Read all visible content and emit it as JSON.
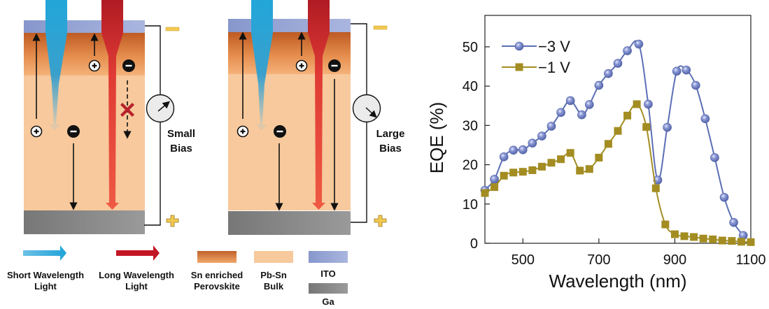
{
  "colors": {
    "ito": "#99a8d6",
    "sn_enriched_top": "#c0622a",
    "sn_enriched_bottom": "#f2a76a",
    "bulk": "#f7c99c",
    "ga": "#8a8a8a",
    "short_light": "#2aa6d8",
    "long_light_top": "#b51c26",
    "long_light_bottom": "#ee5440",
    "electrode_sign": "#f2c950",
    "blocked_x": "#b8222a",
    "series_3v": "#5b6fb5",
    "series_1v": "#a38d22"
  },
  "panels": [
    {
      "id": "small",
      "meter_dir": "up-right",
      "bias_line1": "Small",
      "bias_line2": "Bias",
      "long_electron_blocked": true
    },
    {
      "id": "large",
      "meter_dir": "down-right",
      "bias_line1": "Large",
      "bias_line2": "Bias",
      "long_electron_blocked": false
    }
  ],
  "electrodes": {
    "top_sign": "−",
    "bottom_sign": "+"
  },
  "legend": [
    {
      "key": "short-wavelength-light",
      "line1": "Short Wavelength",
      "line2": "Light"
    },
    {
      "key": "long-wavelength-light",
      "line1": "Long Wavelength",
      "line2": "Light"
    },
    {
      "key": "sn-enriched-perovskite",
      "line1": "Sn enriched",
      "line2": "Perovskite"
    },
    {
      "key": "pb-sn-bulk",
      "line1": "Pb-Sn",
      "line2": "Bulk"
    },
    {
      "key": "ito",
      "line1": "ITO",
      "line2": ""
    },
    {
      "key": "ga",
      "line1": "Ga",
      "line2": ""
    }
  ],
  "chart_data": {
    "type": "line",
    "title": "",
    "xlabel": "Wavelength (nm)",
    "ylabel": "EQE (%)",
    "xlim": [
      400,
      1100
    ],
    "ylim": [
      0,
      58
    ],
    "xticks": [
      500,
      700,
      900,
      1100
    ],
    "yticks": [
      0,
      10,
      20,
      30,
      40,
      50
    ],
    "grid": false,
    "legend_position": "top-left",
    "series": [
      {
        "name": "−3 V",
        "marker": "circle",
        "x": [
          400,
          425,
          450,
          475,
          500,
          525,
          550,
          575,
          600,
          625,
          655,
          675,
          700,
          725,
          750,
          775,
          805,
          830,
          855,
          880,
          905,
          930,
          955,
          980,
          1005,
          1030,
          1055,
          1080
        ],
        "y": [
          13.5,
          16.3,
          22.0,
          23.7,
          23.8,
          25.5,
          27.3,
          29.8,
          33.3,
          36.3,
          32.7,
          35.3,
          40.2,
          43.2,
          45.8,
          49.0,
          50.7,
          35.4,
          16.1,
          29.5,
          43.8,
          44.1,
          40.2,
          31.7,
          21.8,
          11.7,
          5.3,
          2.0
        ]
      },
      {
        "name": "−1 V",
        "marker": "square",
        "x": [
          400,
          425,
          450,
          475,
          500,
          525,
          550,
          575,
          600,
          625,
          650,
          675,
          700,
          725,
          750,
          775,
          800,
          825,
          850,
          875,
          900,
          925,
          950,
          975,
          1000,
          1025,
          1050,
          1075,
          1100
        ],
        "y": [
          12.8,
          14.3,
          17.2,
          18.0,
          18.2,
          18.6,
          19.5,
          20.5,
          21.4,
          23.0,
          18.5,
          18.9,
          21.8,
          25.3,
          28.6,
          32.5,
          35.4,
          29.6,
          14.0,
          4.8,
          2.3,
          1.8,
          1.6,
          1.2,
          1.0,
          0.7,
          0.6,
          0.4,
          0.3
        ]
      }
    ]
  }
}
